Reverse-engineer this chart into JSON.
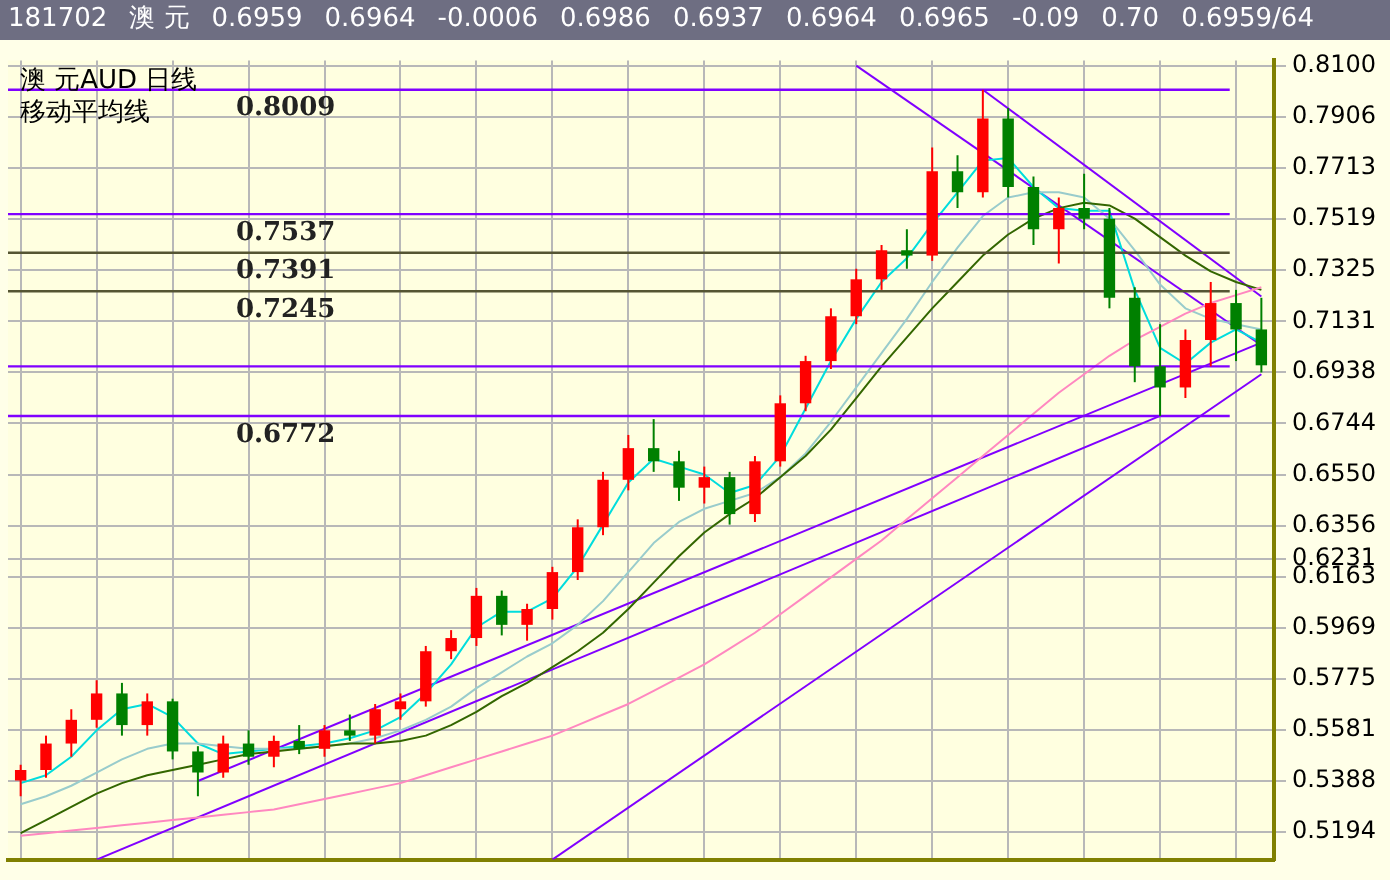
{
  "chart_data": {
    "type": "candlestick",
    "title": "澳 元AUD 日线",
    "subtitle": "移动平均线",
    "annotations": [
      "181702",
      "澳 元",
      "0.6959",
      "0.6964",
      "-0.0006",
      "0.6986",
      "0.6937",
      "0.6964",
      "0.6965",
      "-0.09",
      "0.70",
      "0.6959/64"
    ],
    "categories": [
      null,
      null,
      null,
      null,
      null,
      null,
      null,
      null,
      null,
      null,
      null,
      null,
      null,
      null,
      null,
      null,
      null,
      null,
      null,
      null,
      null,
      null,
      null,
      null,
      null,
      null,
      null,
      null,
      null,
      null,
      null,
      null,
      null,
      null,
      null,
      null,
      null,
      null,
      null,
      null,
      null,
      null,
      null,
      null,
      null,
      null,
      null,
      null,
      null,
      null
    ],
    "ohlc": [
      [
        0.539,
        0.545,
        0.533,
        0.543
      ],
      [
        0.543,
        0.556,
        0.54,
        0.553
      ],
      [
        0.553,
        0.566,
        0.548,
        0.562
      ],
      [
        0.562,
        0.577,
        0.559,
        0.572
      ],
      [
        0.572,
        0.576,
        0.556,
        0.56
      ],
      [
        0.56,
        0.572,
        0.556,
        0.569
      ],
      [
        0.569,
        0.57,
        0.547,
        0.55
      ],
      [
        0.55,
        0.552,
        0.533,
        0.542
      ],
      [
        0.542,
        0.556,
        0.54,
        0.553
      ],
      [
        0.553,
        0.558,
        0.545,
        0.548
      ],
      [
        0.548,
        0.556,
        0.544,
        0.554
      ],
      [
        0.554,
        0.56,
        0.549,
        0.551
      ],
      [
        0.551,
        0.56,
        0.548,
        0.558
      ],
      [
        0.558,
        0.564,
        0.554,
        0.556
      ],
      [
        0.556,
        0.568,
        0.553,
        0.566
      ],
      [
        0.566,
        0.572,
        0.562,
        0.569
      ],
      [
        0.569,
        0.59,
        0.567,
        0.588
      ],
      [
        0.588,
        0.596,
        0.585,
        0.593
      ],
      [
        0.593,
        0.612,
        0.59,
        0.609
      ],
      [
        0.609,
        0.611,
        0.594,
        0.598
      ],
      [
        0.598,
        0.606,
        0.592,
        0.604
      ],
      [
        0.604,
        0.62,
        0.6,
        0.618
      ],
      [
        0.618,
        0.638,
        0.615,
        0.635
      ],
      [
        0.635,
        0.656,
        0.632,
        0.653
      ],
      [
        0.653,
        0.67,
        0.649,
        0.665
      ],
      [
        0.665,
        0.676,
        0.656,
        0.66
      ],
      [
        0.66,
        0.664,
        0.645,
        0.65
      ],
      [
        0.65,
        0.658,
        0.644,
        0.654
      ],
      [
        0.654,
        0.656,
        0.636,
        0.64
      ],
      [
        0.64,
        0.662,
        0.637,
        0.66
      ],
      [
        0.66,
        0.685,
        0.658,
        0.682
      ],
      [
        0.682,
        0.7,
        0.679,
        0.698
      ],
      [
        0.698,
        0.718,
        0.695,
        0.715
      ],
      [
        0.715,
        0.733,
        0.712,
        0.729
      ],
      [
        0.729,
        0.742,
        0.725,
        0.74
      ],
      [
        0.74,
        0.748,
        0.733,
        0.738
      ],
      [
        0.738,
        0.779,
        0.736,
        0.77
      ],
      [
        0.77,
        0.776,
        0.756,
        0.762
      ],
      [
        0.762,
        0.8009,
        0.76,
        0.79
      ],
      [
        0.79,
        0.794,
        0.76,
        0.764
      ],
      [
        0.764,
        0.768,
        0.742,
        0.748
      ],
      [
        0.748,
        0.76,
        0.735,
        0.756
      ],
      [
        0.756,
        0.769,
        0.748,
        0.752
      ],
      [
        0.752,
        0.756,
        0.718,
        0.722
      ],
      [
        0.722,
        0.726,
        0.69,
        0.696
      ],
      [
        0.696,
        0.712,
        0.6772,
        0.688
      ],
      [
        0.688,
        0.71,
        0.684,
        0.706
      ],
      [
        0.706,
        0.728,
        0.696,
        0.72
      ],
      [
        0.72,
        0.725,
        0.698,
        0.71
      ],
      [
        0.71,
        0.722,
        0.6937,
        0.6964
      ]
    ],
    "series": [
      {
        "type": "line",
        "color": "#ff88c0",
        "values": [
          0.518,
          0.519,
          0.52,
          0.521,
          0.522,
          0.523,
          0.524,
          0.525,
          0.526,
          0.527,
          0.528,
          0.53,
          0.532,
          0.534,
          0.536,
          0.538,
          0.541,
          0.544,
          0.547,
          0.55,
          0.553,
          0.556,
          0.56,
          0.564,
          0.568,
          0.573,
          0.578,
          0.583,
          0.589,
          0.595,
          0.602,
          0.609,
          0.616,
          0.623,
          0.63,
          0.638,
          0.646,
          0.654,
          0.662,
          0.67,
          0.678,
          0.686,
          0.693,
          0.7,
          0.706,
          0.711,
          0.716,
          0.72,
          0.723,
          0.726
        ]
      },
      {
        "type": "line",
        "color": "#336600",
        "values": [
          0.519,
          0.524,
          0.529,
          0.534,
          0.538,
          0.541,
          0.543,
          0.545,
          0.547,
          0.549,
          0.55,
          0.551,
          0.552,
          0.553,
          0.553,
          0.554,
          0.556,
          0.56,
          0.565,
          0.571,
          0.576,
          0.582,
          0.588,
          0.595,
          0.604,
          0.614,
          0.624,
          0.633,
          0.64,
          0.646,
          0.654,
          0.662,
          0.672,
          0.684,
          0.696,
          0.707,
          0.718,
          0.728,
          0.738,
          0.746,
          0.752,
          0.756,
          0.758,
          0.757,
          0.752,
          0.745,
          0.738,
          0.732,
          0.728,
          0.725
        ]
      },
      {
        "type": "line",
        "color": "#99cccc",
        "values": [
          0.53,
          0.533,
          0.537,
          0.542,
          0.547,
          0.551,
          0.553,
          0.553,
          0.552,
          0.551,
          0.551,
          0.551,
          0.552,
          0.553,
          0.555,
          0.558,
          0.562,
          0.567,
          0.574,
          0.58,
          0.586,
          0.591,
          0.598,
          0.607,
          0.618,
          0.629,
          0.637,
          0.642,
          0.645,
          0.648,
          0.654,
          0.663,
          0.675,
          0.688,
          0.701,
          0.714,
          0.728,
          0.741,
          0.753,
          0.76,
          0.762,
          0.762,
          0.76,
          0.752,
          0.74,
          0.727,
          0.718,
          0.714,
          0.712,
          0.71
        ]
      },
      {
        "type": "line",
        "color": "#00dddd",
        "values": [
          0.538,
          0.541,
          0.548,
          0.558,
          0.566,
          0.568,
          0.563,
          0.553,
          0.549,
          0.55,
          0.551,
          0.552,
          0.553,
          0.555,
          0.558,
          0.563,
          0.572,
          0.583,
          0.597,
          0.603,
          0.603,
          0.608,
          0.62,
          0.636,
          0.652,
          0.661,
          0.658,
          0.655,
          0.648,
          0.651,
          0.662,
          0.68,
          0.698,
          0.714,
          0.728,
          0.737,
          0.75,
          0.762,
          0.774,
          0.775,
          0.764,
          0.756,
          0.755,
          0.755,
          0.725,
          0.703,
          0.697,
          0.705,
          0.71,
          0.705
        ]
      },
      {
        "type": "line",
        "color": "#8000ff",
        "values": [
          null,
          null,
          null,
          null,
          null,
          null,
          null,
          null,
          null,
          null,
          null,
          null,
          null,
          null,
          null,
          null,
          null,
          null,
          null,
          null,
          null,
          null,
          null,
          null,
          null,
          null,
          null,
          null,
          null,
          null,
          null,
          null,
          null,
          0.81,
          null,
          null,
          null,
          null,
          null,
          null,
          null,
          null,
          null,
          null,
          null,
          null,
          null,
          null,
          null,
          0.704
        ]
      },
      {
        "type": "line",
        "color": "#8000ff",
        "values": [
          null,
          null,
          null,
          null,
          null,
          null,
          null,
          null,
          null,
          null,
          null,
          null,
          null,
          null,
          null,
          null,
          null,
          null,
          null,
          null,
          null,
          null,
          null,
          null,
          null,
          null,
          null,
          null,
          null,
          null,
          null,
          null,
          null,
          null,
          null,
          null,
          null,
          null,
          0.8009,
          null,
          null,
          null,
          null,
          null,
          null,
          null,
          null,
          null,
          null,
          0.7225
        ]
      },
      {
        "type": "line",
        "color": "#8000ff",
        "values": [
          null,
          null,
          null,
          0.509,
          null,
          null,
          null,
          null,
          null,
          null,
          null,
          null,
          null,
          null,
          null,
          null,
          null,
          null,
          null,
          null,
          null,
          null,
          null,
          null,
          null,
          null,
          null,
          null,
          null,
          null,
          null,
          null,
          null,
          null,
          null,
          null,
          null,
          null,
          null,
          null,
          null,
          null,
          null,
          null,
          null,
          0.6772,
          null,
          null,
          null,
          null
        ]
      },
      {
        "type": "line",
        "color": "#8000ff",
        "values": [
          null,
          null,
          null,
          null,
          null,
          null,
          null,
          null,
          null,
          null,
          null,
          null,
          null,
          null,
          null,
          null,
          null,
          null,
          null,
          null,
          null,
          0.509,
          null,
          null,
          null,
          null,
          null,
          null,
          null,
          null,
          null,
          null,
          null,
          null,
          null,
          null,
          null,
          null,
          null,
          null,
          null,
          null,
          null,
          null,
          null,
          null,
          null,
          null,
          null,
          0.693
        ]
      },
      {
        "type": "line",
        "color": "#8000ff",
        "values": [
          null,
          null,
          null,
          null,
          null,
          null,
          null,
          0.5388,
          null,
          null,
          null,
          null,
          null,
          null,
          null,
          null,
          null,
          null,
          null,
          null,
          null,
          null,
          null,
          null,
          null,
          null,
          null,
          null,
          null,
          null,
          null,
          null,
          null,
          null,
          null,
          null,
          null,
          null,
          null,
          null,
          null,
          null,
          null,
          null,
          null,
          null,
          null,
          null,
          null,
          0.705
        ]
      }
    ],
    "ref_lines": [
      {
        "axis": "y",
        "value": 0.8009,
        "label": "0.8009",
        "color": "#8000ff"
      },
      {
        "axis": "y",
        "value": 0.7537,
        "label": "0.7537",
        "color": "#8000ff"
      },
      {
        "axis": "y",
        "value": 0.7391,
        "label": "0.7391",
        "color": "#555533"
      },
      {
        "axis": "y",
        "value": 0.7245,
        "label": "0.7245",
        "color": "#555533"
      },
      {
        "axis": "y",
        "value": 0.696,
        "color": "#8000ff"
      },
      {
        "axis": "y",
        "value": 0.6772,
        "label": "0.6772",
        "color": "#8000ff"
      }
    ],
    "ylim": [
      0.509,
      0.812
    ],
    "yticks": [
      {
        "value": 0.81,
        "label": "0.8100"
      },
      0.7906,
      0.7713,
      0.7519,
      0.7325,
      0.7131,
      0.6938,
      0.6744,
      {
        "value": 0.655,
        "label": "0.6550"
      },
      0.6356,
      {
        "value": 0.6231,
        "label": "0.6231"
      },
      0.6163,
      0.5969,
      0.5775,
      0.5581,
      0.5388,
      0.5194
    ],
    "grid": true,
    "legend": false
  }
}
